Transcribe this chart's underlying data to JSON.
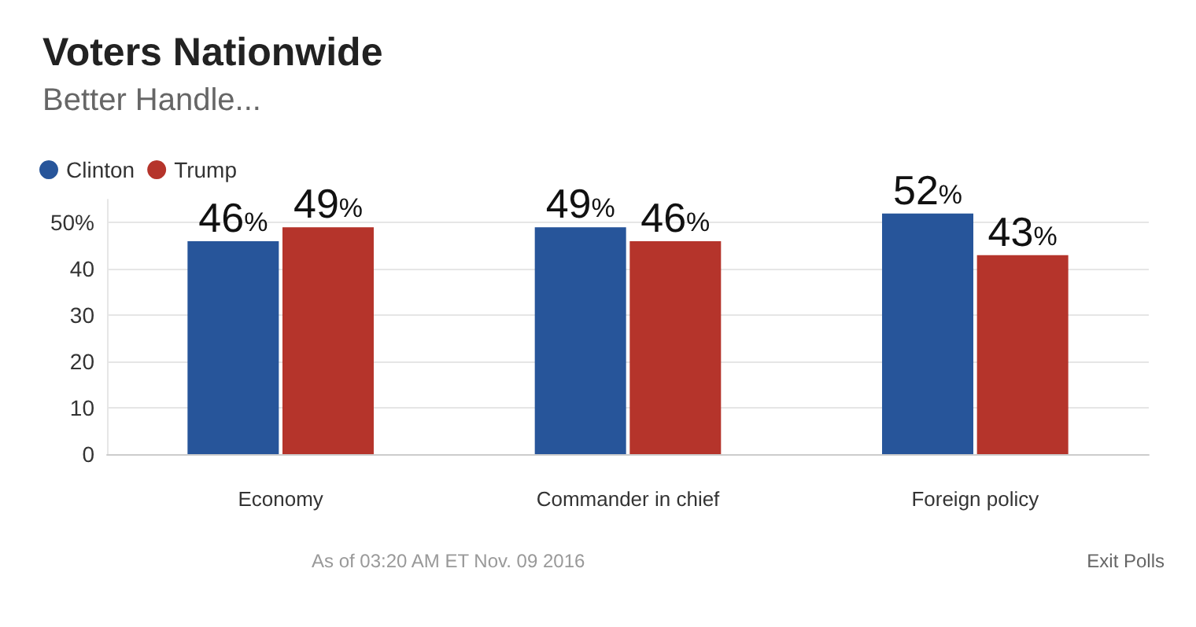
{
  "chart_data": {
    "type": "bar",
    "title": "Voters Nationwide",
    "subtitle": "Better Handle...",
    "categories": [
      "Economy",
      "Commander in chief",
      "Foreign policy"
    ],
    "series": [
      {
        "name": "Clinton",
        "color": "#27559a",
        "values": [
          46,
          49,
          52
        ],
        "value_labels": [
          "46%",
          "49%",
          "52%"
        ]
      },
      {
        "name": "Trump",
        "color": "#b5342b",
        "values": [
          49,
          46,
          43
        ],
        "value_labels": [
          "49%",
          "46%",
          "43%"
        ]
      }
    ],
    "ylim": [
      0,
      55
    ],
    "yticks": [
      0,
      10,
      20,
      30,
      40,
      {
        "value": 50,
        "label": "50%"
      }
    ],
    "grid": "y",
    "legend": "top left",
    "annotations": [
      "As of 03:20 AM ET Nov. 09 2016",
      "Exit Polls"
    ]
  }
}
